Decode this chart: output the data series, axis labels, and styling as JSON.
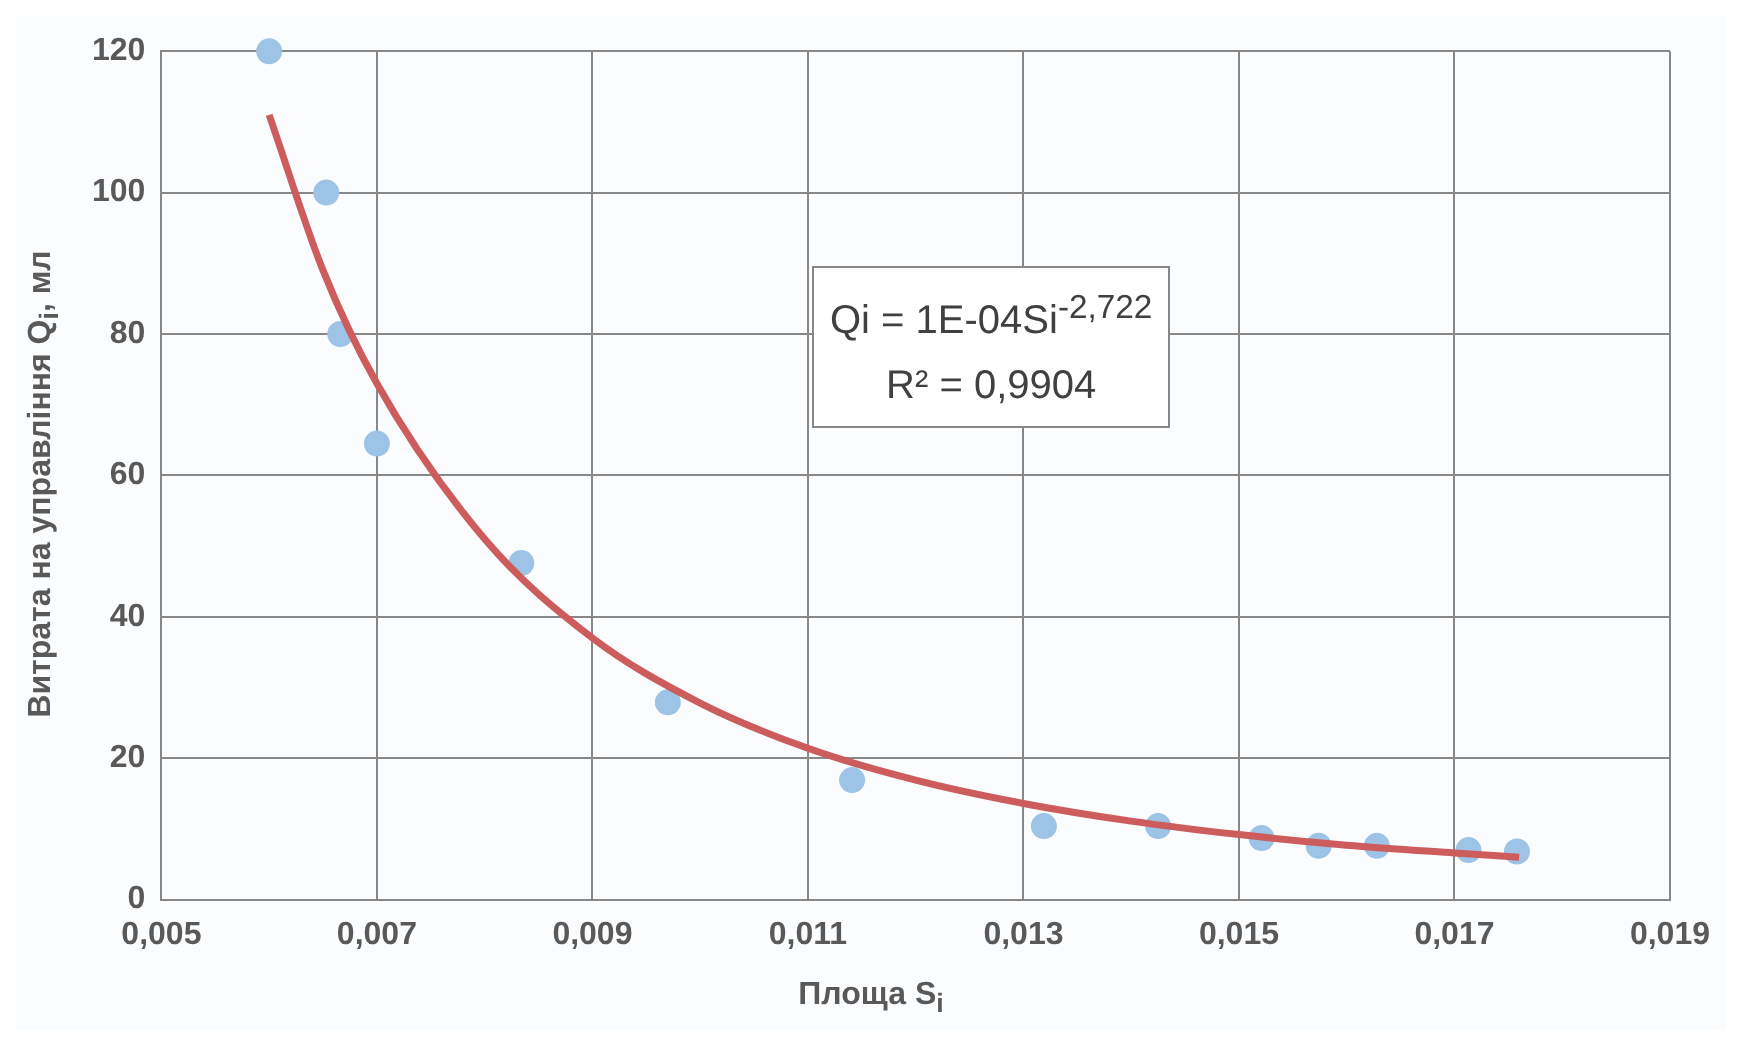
{
  "chart_data": {
    "type": "scatter",
    "xlabel": "Площа S$_{i}$",
    "ylabel": "Витрата на управління Q$_{i}$, мл",
    "xlim": [
      0.005,
      0.019
    ],
    "xticks": [
      {
        "value": 0.005,
        "label": "0,005"
      },
      {
        "value": 0.007,
        "label": "0,007"
      },
      {
        "value": 0.009,
        "label": "0,009"
      },
      {
        "value": 0.011,
        "label": "0,011"
      },
      {
        "value": 0.013,
        "label": "0,013"
      },
      {
        "value": 0.015,
        "label": "0,015"
      },
      {
        "value": 0.017,
        "label": "0,017"
      },
      {
        "value": 0.019,
        "label": "0,019"
      }
    ],
    "ylim": [
      0,
      120
    ],
    "yticks": [
      0,
      20,
      40,
      60,
      80,
      100,
      120
    ],
    "grid": true,
    "legend": false,
    "series": [
      {
        "type": "scatter",
        "marker": "circle",
        "color": "#9dc3e6",
        "x": [
          0.006,
          0.00653,
          0.00666,
          0.007,
          0.00834,
          0.0097,
          0.01141,
          0.01319,
          0.01425,
          0.01521,
          0.01574,
          0.01628,
          0.01713,
          0.01758
        ],
        "values": [
          120,
          100,
          80,
          64.5,
          47.6,
          27.9,
          16.9,
          10.4,
          10.4,
          8.7,
          7.6,
          7.6,
          7.0,
          6.8
        ]
      },
      {
        "type": "line",
        "marker": "none",
        "color": "#cd5c5c",
        "x": [
          0.006,
          0.0065,
          0.007,
          0.008,
          0.009,
          0.01,
          0.011,
          0.012,
          0.013,
          0.014,
          0.015,
          0.016,
          0.017,
          0.0176
        ],
        "values": [
          111,
          89,
          73,
          51,
          37,
          27.8,
          21.4,
          16.9,
          13.6,
          11.1,
          9.2,
          7.7,
          6.6,
          6.0
        ]
      }
    ],
    "annotations": [
      "Qi = 1E-04Si$^{-2,722}$",
      "R² = 0,9904"
    ]
  }
}
